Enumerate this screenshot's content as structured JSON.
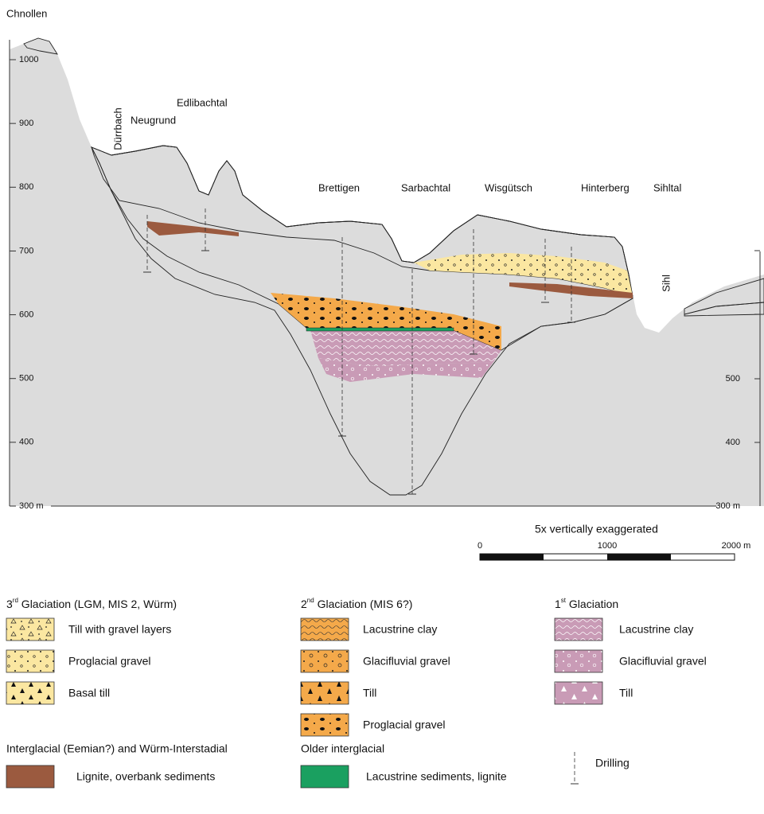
{
  "section": {
    "places": [
      "Chnollen",
      "Dürrbach",
      "Neugrund",
      "Edlibachtal",
      "Brettigen",
      "Sarbachtal",
      "Wisgütsch",
      "Hinterberg",
      "Sihltal",
      "Sihl"
    ],
    "left_axis": [
      "1000",
      "900",
      "800",
      "700",
      "600",
      "500",
      "400",
      "300 m"
    ],
    "right_axis": [
      "500",
      "400",
      "300 m"
    ]
  },
  "scale": {
    "note": "5x vertically exaggerated",
    "labels": [
      "0",
      "1000",
      "2000 m"
    ]
  },
  "legend": {
    "third": {
      "number": "3",
      "ordinal": "rd",
      "text": " Glaciation (LGM, MIS 2, Würm)",
      "items": [
        "Till with gravel layers",
        "Proglacial gravel",
        "Basal till"
      ]
    },
    "second": {
      "number": "2",
      "ordinal": "nd",
      "text": " Glaciation (MIS 6?)",
      "items": [
        "Lacustrine clay",
        "Glacifluvial gravel",
        "Till",
        "Proglacial gravel"
      ]
    },
    "first": {
      "number": "1",
      "ordinal": "st",
      "text": " Glaciation",
      "items": [
        "Lacustrine clay",
        "Glacifluvial gravel",
        "Till"
      ]
    },
    "interglacial": {
      "title": "Interglacial (Eemian?) and Würm-Interstadial",
      "item": "Lignite, overbank sediments"
    },
    "older": {
      "title": "Older interglacial",
      "item": "Lacustrine sediments, lignite"
    },
    "drilling": "Drilling"
  }
}
